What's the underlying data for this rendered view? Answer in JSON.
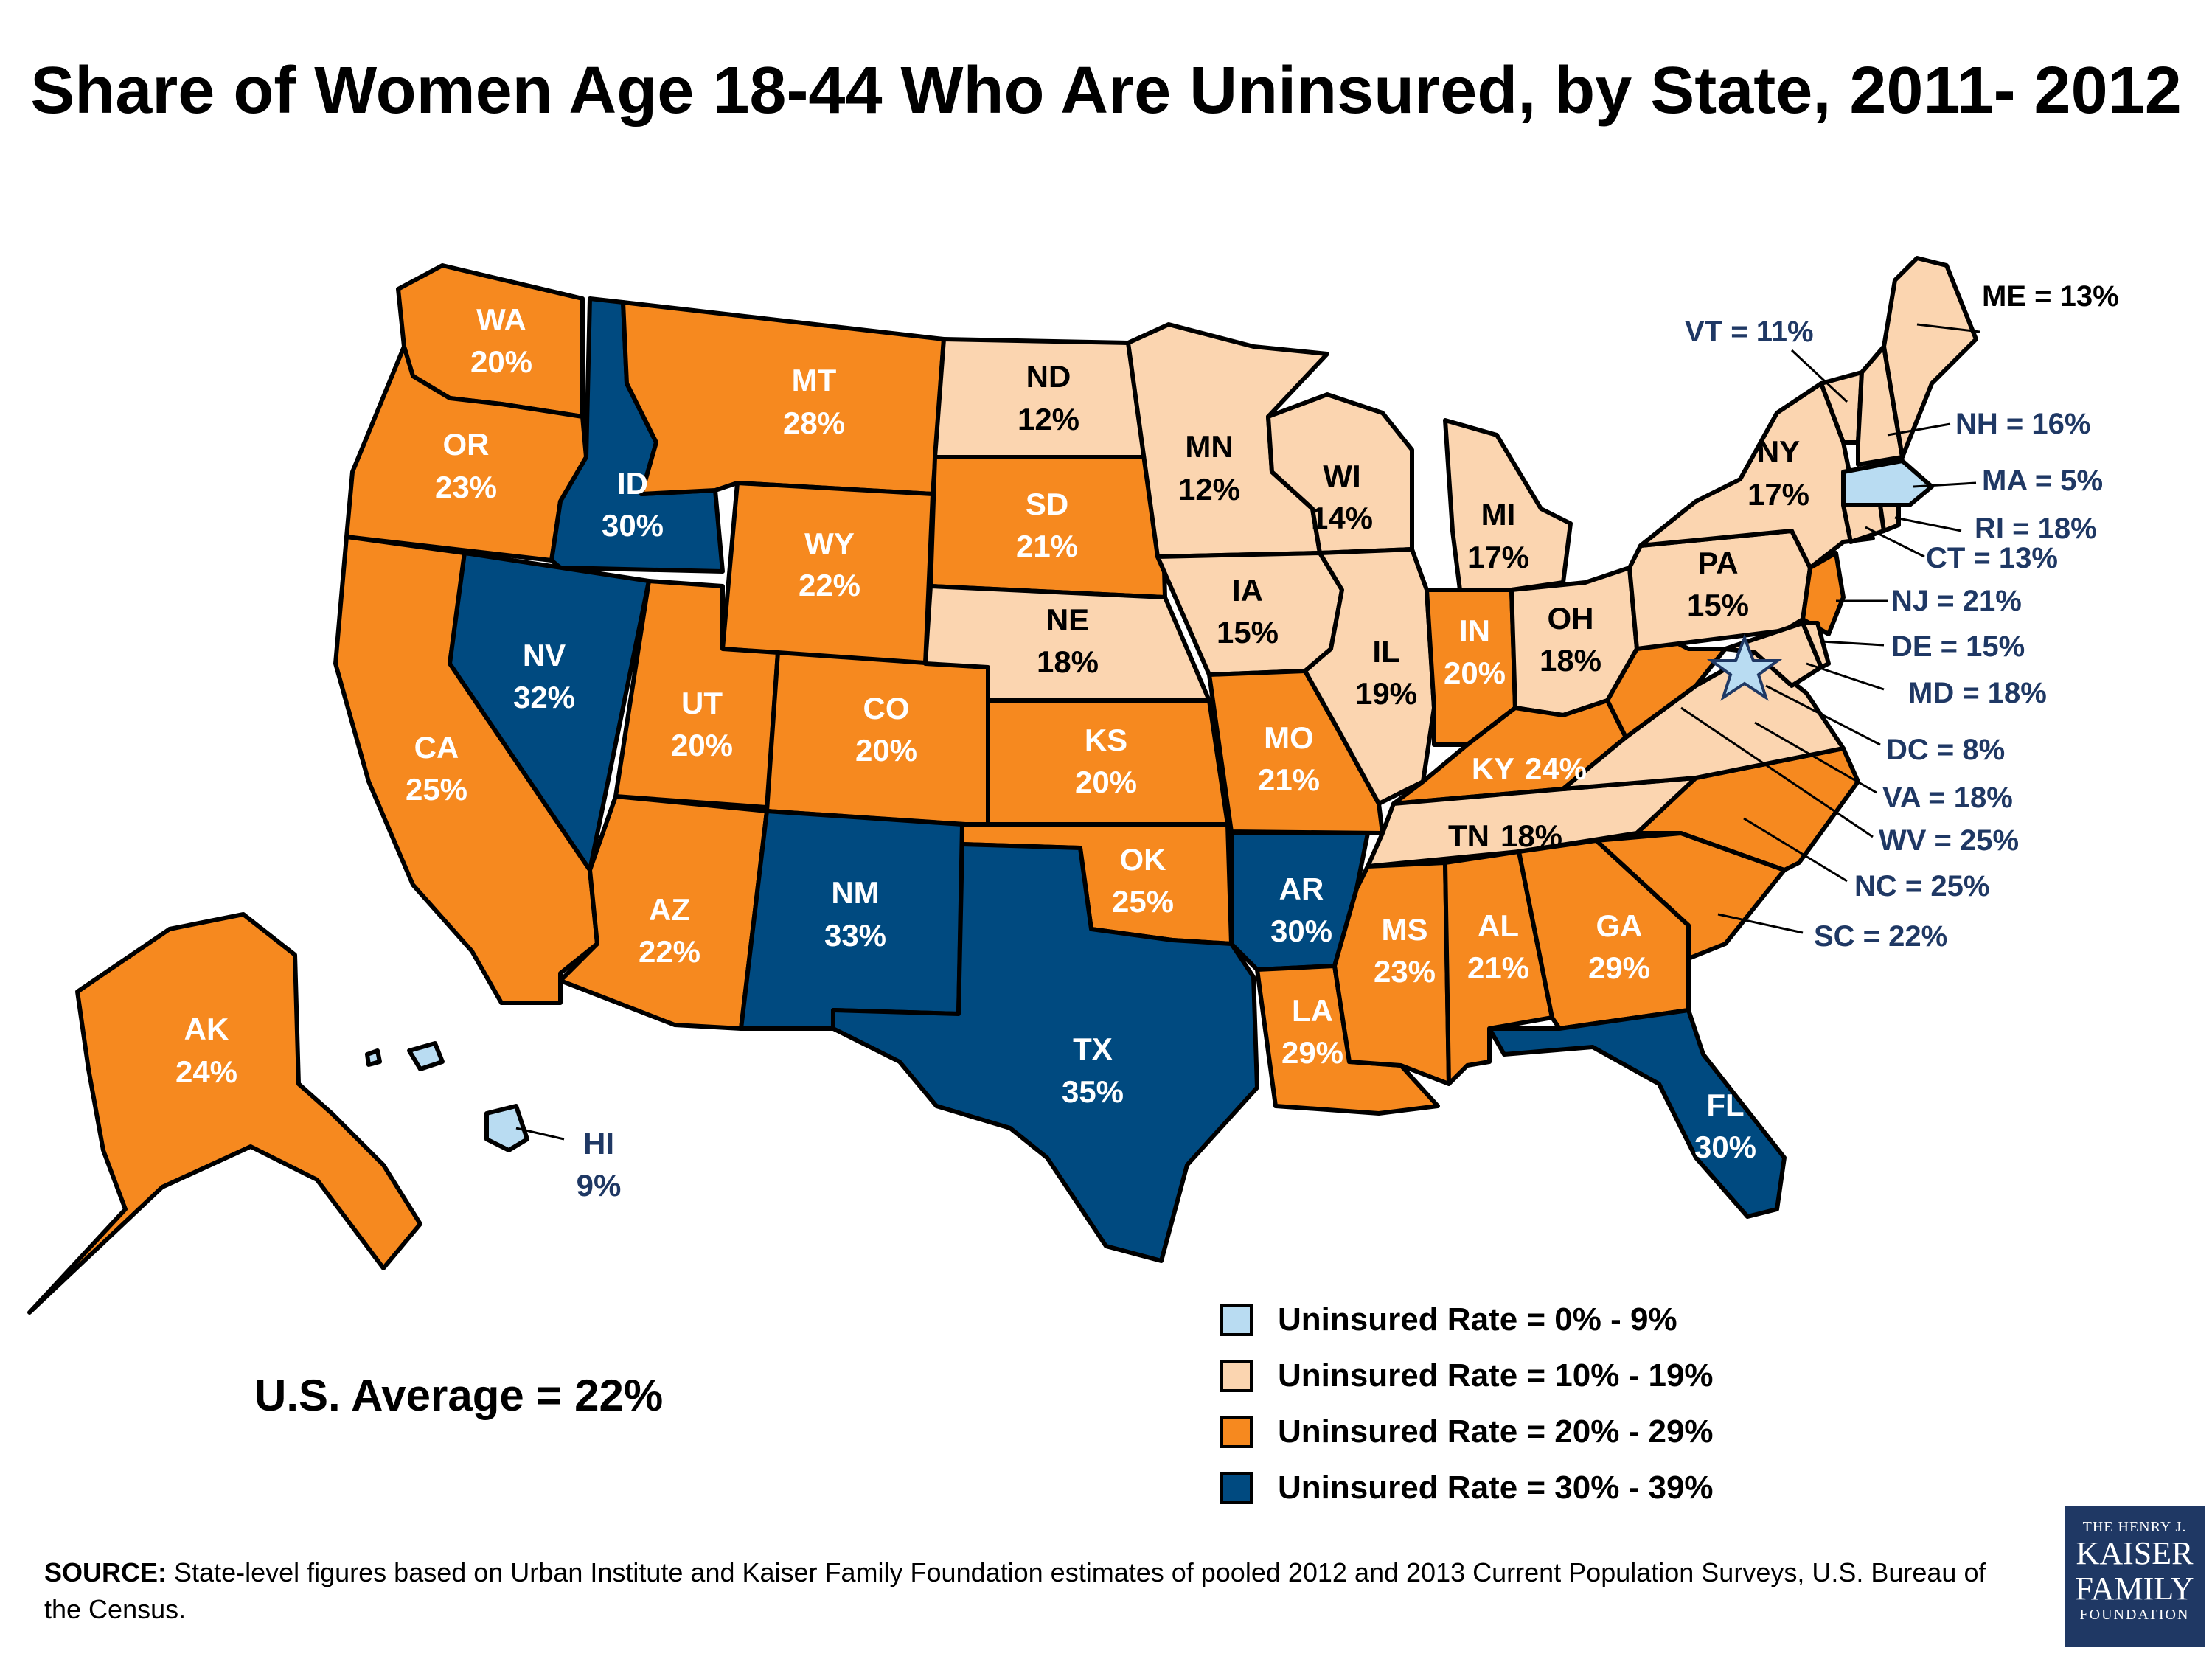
{
  "title": "Share of Women Age 18-44 Who Are Uninsured, by State, 2011- 2012",
  "colors": {
    "range_0_9": "#b9dcf2",
    "range_10_19": "#fbd5b0",
    "range_20_29": "#f6891f",
    "range_30_39": "#004a80",
    "outline": "#000000",
    "callout_text": "#1f3864"
  },
  "states": {
    "WA": {
      "abbr": "WA",
      "value": "20%"
    },
    "OR": {
      "abbr": "OR",
      "value": "23%"
    },
    "CA": {
      "abbr": "CA",
      "value": "25%"
    },
    "ID": {
      "abbr": "ID",
      "value": "30%"
    },
    "NV": {
      "abbr": "NV",
      "value": "32%"
    },
    "MT": {
      "abbr": "MT",
      "value": "28%"
    },
    "WY": {
      "abbr": "WY",
      "value": "22%"
    },
    "UT": {
      "abbr": "UT",
      "value": "20%"
    },
    "AZ": {
      "abbr": "AZ",
      "value": "22%"
    },
    "CO": {
      "abbr": "CO",
      "value": "20%"
    },
    "NM": {
      "abbr": "NM",
      "value": "33%"
    },
    "ND": {
      "abbr": "ND",
      "value": "12%"
    },
    "SD": {
      "abbr": "SD",
      "value": "21%"
    },
    "NE": {
      "abbr": "NE",
      "value": "18%"
    },
    "KS": {
      "abbr": "KS",
      "value": "20%"
    },
    "OK": {
      "abbr": "OK",
      "value": "25%"
    },
    "TX": {
      "abbr": "TX",
      "value": "35%"
    },
    "MN": {
      "abbr": "MN",
      "value": "12%"
    },
    "IA": {
      "abbr": "IA",
      "value": "15%"
    },
    "MO": {
      "abbr": "MO",
      "value": "21%"
    },
    "AR": {
      "abbr": "AR",
      "value": "30%"
    },
    "LA": {
      "abbr": "LA",
      "value": "29%"
    },
    "WI": {
      "abbr": "WI",
      "value": "14%"
    },
    "IL": {
      "abbr": "IL",
      "value": "19%"
    },
    "MI": {
      "abbr": "MI",
      "value": "17%"
    },
    "IN": {
      "abbr": "IN",
      "value": "20%"
    },
    "OH": {
      "abbr": "OH",
      "value": "18%"
    },
    "KY": {
      "abbr": "KY",
      "value": "24%"
    },
    "TN": {
      "abbr": "TN",
      "value": "18%"
    },
    "MS": {
      "abbr": "MS",
      "value": "23%"
    },
    "AL": {
      "abbr": "AL",
      "value": "21%"
    },
    "GA": {
      "abbr": "GA",
      "value": "29%"
    },
    "FL": {
      "abbr": "FL",
      "value": "30%"
    },
    "PA": {
      "abbr": "PA",
      "value": "15%"
    },
    "NY": {
      "abbr": "NY",
      "value": "17%"
    },
    "AK": {
      "abbr": "AK",
      "value": "24%"
    },
    "HI": {
      "abbr": "HI",
      "value": "9%"
    }
  },
  "callouts": {
    "ME": "ME = 13%",
    "VT": "VT = 11%",
    "NH": "NH = 16%",
    "MA": "MA = 5%",
    "RI": "RI = 18%",
    "CT": "CT = 13%",
    "NJ": "NJ = 21%",
    "DE": "DE = 15%",
    "MD": "MD = 18%",
    "DC": "DC = 8%",
    "VA": "VA = 18%",
    "WV": "WV = 25%",
    "NC": "NC = 25%",
    "SC": "SC = 22%"
  },
  "legend": [
    {
      "label": "Uninsured Rate = 0% - 9%",
      "color": "#b9dcf2"
    },
    {
      "label": "Uninsured Rate = 10% - 19%",
      "color": "#fbd5b0"
    },
    {
      "label": "Uninsured Rate = 20% - 29%",
      "color": "#f6891f"
    },
    {
      "label": "Uninsured Rate = 30% - 39%",
      "color": "#004a80"
    }
  ],
  "us_average": "U.S. Average = 22%",
  "source": {
    "prefix": "SOURCE:",
    "text": "State-level figures based on Urban Institute and Kaiser Family Foundation estimates of pooled 2012 and 2013 Current Population Surveys, U.S. Bureau of the Census."
  },
  "logo": {
    "line1": "THE HENRY J.",
    "line2": "KAISER",
    "line3": "FAMILY",
    "line4": "FOUNDATION"
  }
}
